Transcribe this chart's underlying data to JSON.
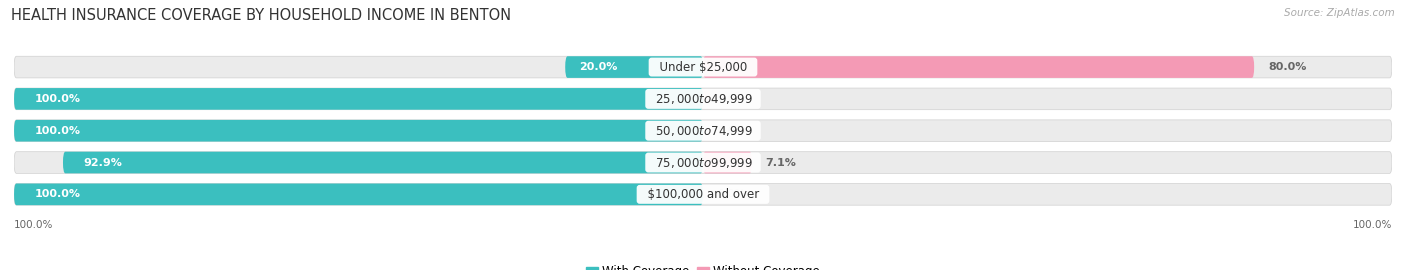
{
  "title": "HEALTH INSURANCE COVERAGE BY HOUSEHOLD INCOME IN BENTON",
  "source": "Source: ZipAtlas.com",
  "categories": [
    "Under $25,000",
    "$25,000 to $49,999",
    "$50,000 to $74,999",
    "$75,000 to $99,999",
    "$100,000 and over"
  ],
  "with_coverage": [
    20.0,
    100.0,
    100.0,
    92.9,
    100.0
  ],
  "without_coverage": [
    80.0,
    0.0,
    0.0,
    7.1,
    0.0
  ],
  "color_with": "#3bbfbf",
  "color_without": "#f49ab5",
  "color_bg_bar": "#ebebeb",
  "bar_height": 0.68,
  "bar_gap": 1.0,
  "title_fontsize": 10.5,
  "label_fontsize": 8.0,
  "cat_fontsize": 8.5,
  "legend_fontsize": 8.5,
  "axis_label_fontsize": 7.5,
  "background_color": "#ffffff",
  "left_pct_color": "#ffffff",
  "right_pct_color": "#666666",
  "outside_pct_color": "#e06090"
}
